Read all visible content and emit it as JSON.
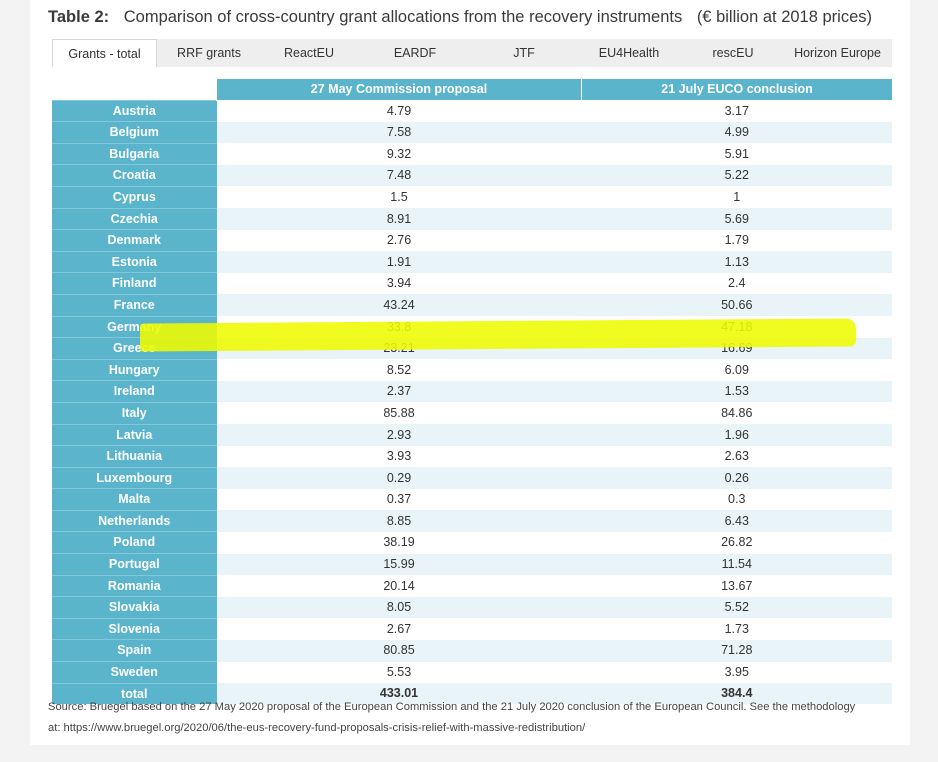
{
  "title": {
    "label": "Table 2:",
    "text": "Comparison of cross-country grant allocations from the recovery instruments",
    "unit": "(€ billion at 2018 prices)"
  },
  "tabs": [
    {
      "label": "Grants - total",
      "active": true
    },
    {
      "label": "RRF grants",
      "active": false
    },
    {
      "label": "ReactEU",
      "active": false
    },
    {
      "label": "EARDF",
      "active": false
    },
    {
      "label": "JTF",
      "active": false
    },
    {
      "label": "EU4Health",
      "active": false
    },
    {
      "label": "rescEU",
      "active": false
    },
    {
      "label": "Horizon Europe",
      "active": false
    }
  ],
  "table": {
    "headers": [
      "27 May Commission proposal",
      "21 July EUCO conclusion"
    ],
    "rows": [
      {
        "country": "Austria",
        "proposal": "4.79",
        "conclusion": "3.17"
      },
      {
        "country": "Belgium",
        "proposal": "7.58",
        "conclusion": "4.99"
      },
      {
        "country": "Bulgaria",
        "proposal": "9.32",
        "conclusion": "5.91"
      },
      {
        "country": "Croatia",
        "proposal": "7.48",
        "conclusion": "5.22"
      },
      {
        "country": "Cyprus",
        "proposal": "1.5",
        "conclusion": "1"
      },
      {
        "country": "Czechia",
        "proposal": "8.91",
        "conclusion": "5.69"
      },
      {
        "country": "Denmark",
        "proposal": "2.76",
        "conclusion": "1.79"
      },
      {
        "country": "Estonia",
        "proposal": "1.91",
        "conclusion": "1.13"
      },
      {
        "country": "Finland",
        "proposal": "3.94",
        "conclusion": "2.4"
      },
      {
        "country": "France",
        "proposal": "43.24",
        "conclusion": "50.66"
      },
      {
        "country": "Germany",
        "proposal": "33.8",
        "conclusion": "47.18"
      },
      {
        "country": "Greece",
        "proposal": "23.21",
        "conclusion": "16.69"
      },
      {
        "country": "Hungary",
        "proposal": "8.52",
        "conclusion": "6.09"
      },
      {
        "country": "Ireland",
        "proposal": "2.37",
        "conclusion": "1.53"
      },
      {
        "country": "Italy",
        "proposal": "85.88",
        "conclusion": "84.86"
      },
      {
        "country": "Latvia",
        "proposal": "2.93",
        "conclusion": "1.96"
      },
      {
        "country": "Lithuania",
        "proposal": "3.93",
        "conclusion": "2.63"
      },
      {
        "country": "Luxembourg",
        "proposal": "0.29",
        "conclusion": "0.26"
      },
      {
        "country": "Malta",
        "proposal": "0.37",
        "conclusion": "0.3"
      },
      {
        "country": "Netherlands",
        "proposal": "8.85",
        "conclusion": "6.43"
      },
      {
        "country": "Poland",
        "proposal": "38.19",
        "conclusion": "26.82"
      },
      {
        "country": "Portugal",
        "proposal": "15.99",
        "conclusion": "11.54"
      },
      {
        "country": "Romania",
        "proposal": "20.14",
        "conclusion": "13.67"
      },
      {
        "country": "Slovakia",
        "proposal": "8.05",
        "conclusion": "5.52"
      },
      {
        "country": "Slovenia",
        "proposal": "2.67",
        "conclusion": "1.73"
      },
      {
        "country": "Spain",
        "proposal": "80.85",
        "conclusion": "71.28"
      },
      {
        "country": "Sweden",
        "proposal": "5.53",
        "conclusion": "3.95"
      },
      {
        "country": "total",
        "proposal": "433.01",
        "conclusion": "384.4"
      }
    ]
  },
  "highlight": {
    "row": "Greece",
    "color": "#eefb00"
  },
  "colors": {
    "header": "#5ab4cb",
    "stripe": "#e8f4f8"
  },
  "source": {
    "line1": "Source:  Bruegel based on the 27 May 2020 proposal of the European Commission and the 21 July 2020 conclusion of the European Council. See the methodology",
    "line2": "at: https://www.bruegel.org/2020/06/the-eus-recovery-fund-proposals-crisis-relief-with-massive-redistribution/"
  }
}
